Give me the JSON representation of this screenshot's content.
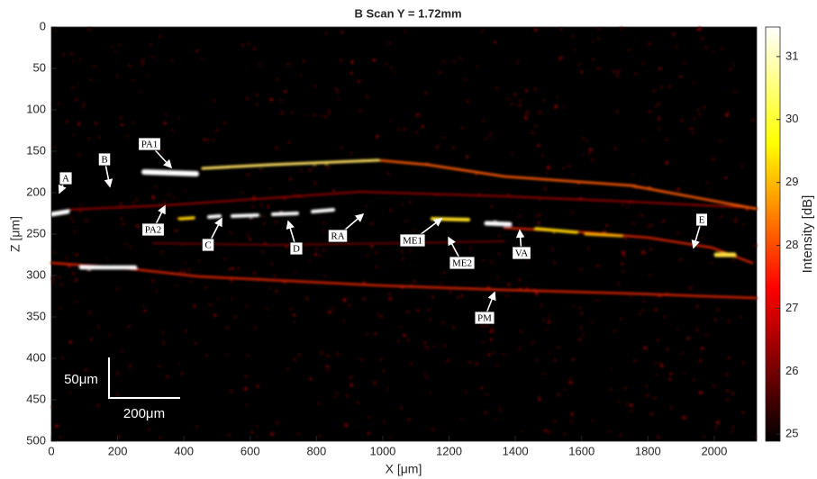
{
  "chart_data": {
    "type": "heatmap",
    "title": "B Scan Y = 1.72mm",
    "x_label": "X [μm]",
    "y_label": "Z [μm]",
    "xlim": [
      0,
      2128
    ],
    "xticks": [
      0,
      200,
      400,
      600,
      800,
      1000,
      1200,
      1400,
      1600,
      1800,
      2000
    ],
    "ylim": [
      0,
      500
    ],
    "yticks": [
      0,
      50,
      100,
      150,
      200,
      250,
      300,
      350,
      400,
      450,
      500
    ],
    "y_reversed": true,
    "colorbar": {
      "label": "Intensity [dB]",
      "clim": [
        24.89,
        31.47
      ],
      "ticks": [
        25,
        26,
        27,
        28,
        29,
        30,
        31
      ]
    },
    "annotations": [
      "PA1",
      "B",
      "A",
      "PA2",
      "C",
      "D",
      "RA",
      "ME1",
      "ME2",
      "VA",
      "E",
      "PM"
    ],
    "scale_bar": {
      "z_label": "50μm",
      "x_label": "200μm"
    }
  }
}
